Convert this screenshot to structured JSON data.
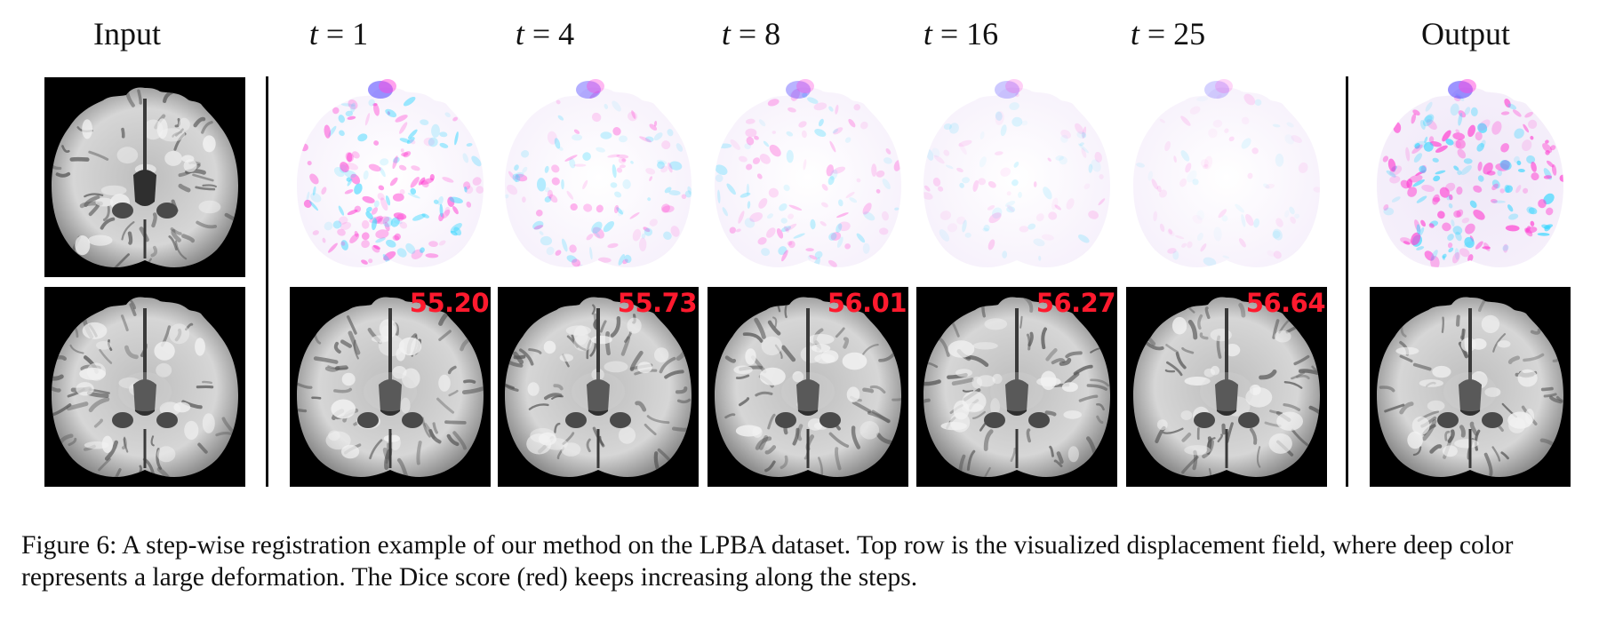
{
  "figure": {
    "headers": {
      "input": "Input",
      "steps": [
        {
          "var": "t",
          "eq": "=",
          "val": "1"
        },
        {
          "var": "t",
          "eq": "=",
          "val": "4"
        },
        {
          "var": "t",
          "eq": "=",
          "val": "8"
        },
        {
          "var": "t",
          "eq": "=",
          "val": "16"
        },
        {
          "var": "t",
          "eq": "=",
          "val": "25"
        }
      ],
      "output": "Output"
    },
    "dice_scores": [
      "55.20",
      "55.73",
      "56.01",
      "56.27",
      "56.64"
    ],
    "dice_color": "#ff1a2e",
    "displacement_intensity": [
      0.85,
      0.55,
      0.5,
      0.3,
      0.22
    ],
    "output_displacement_intensity": 1.0,
    "caption": "Figure 6: A step-wise registration example of our method on the LPBA dataset. Top row is the visualized displacement field, where deep color represents a large deformation. The Dice score (red) keeps increasing along the steps."
  }
}
